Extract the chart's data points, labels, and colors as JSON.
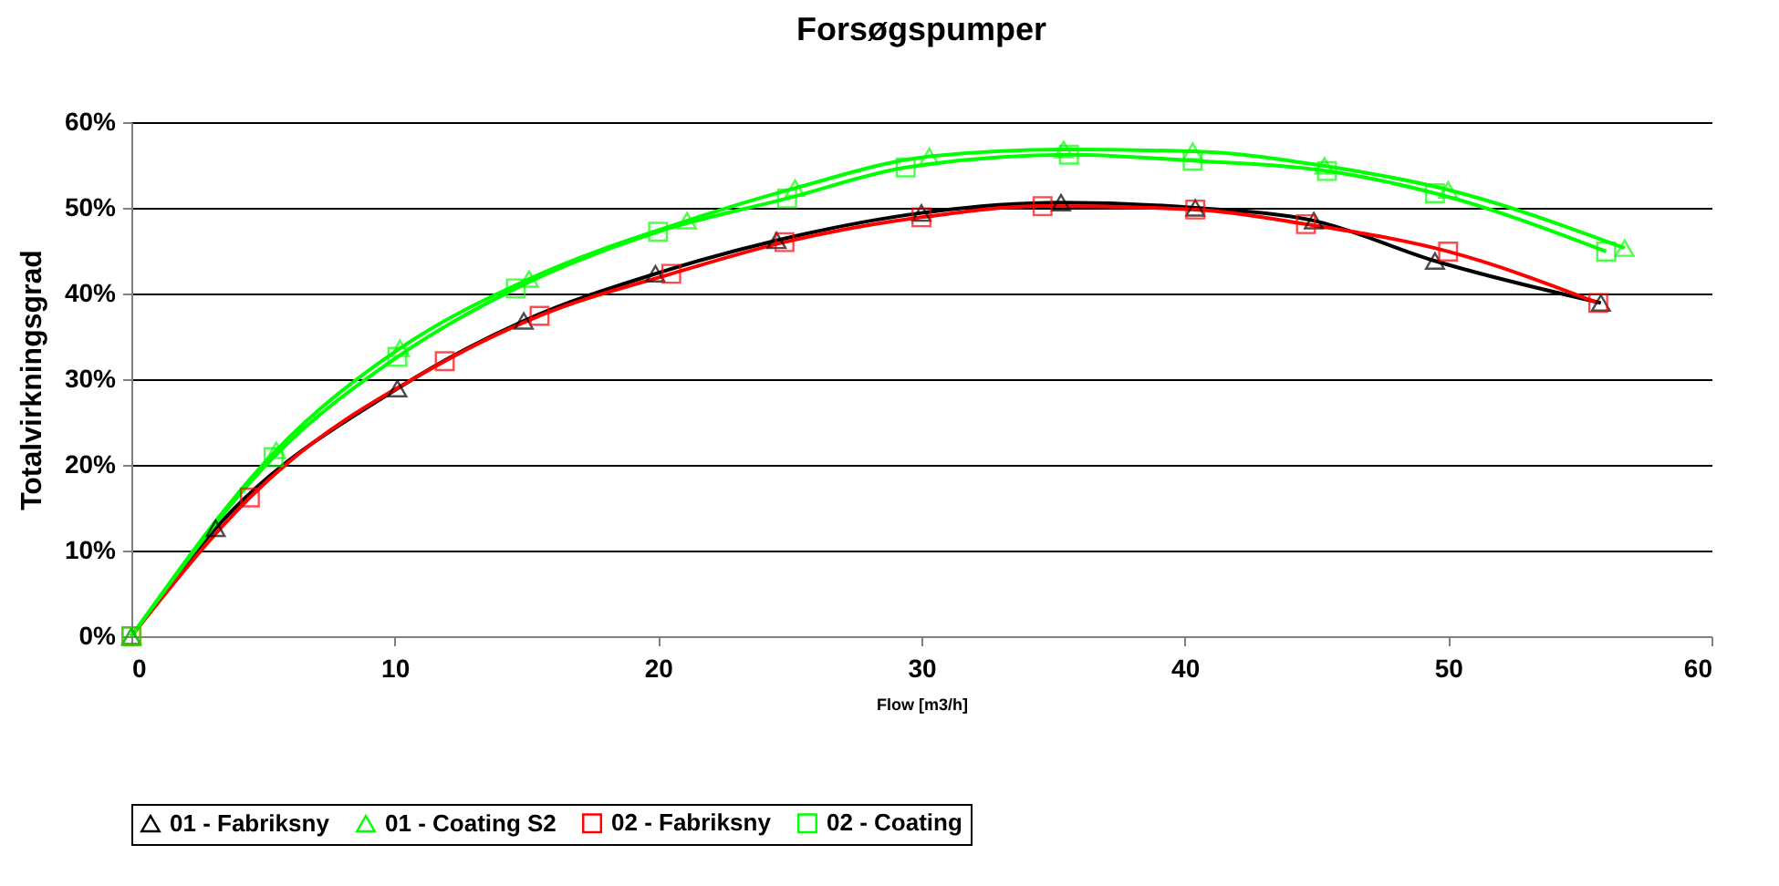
{
  "chart_data": {
    "type": "line",
    "title": "Forsøgspumper",
    "xlabel": "Flow [m3/h]",
    "ylabel": "Totalvirkningsgrad",
    "xlim": [
      0,
      60
    ],
    "xticks": [
      0,
      10,
      20,
      30,
      40,
      50,
      60
    ],
    "ylim": [
      0,
      60
    ],
    "yticks": [
      {
        "value": 0,
        "label": "0%"
      },
      {
        "value": 10,
        "label": "10%"
      },
      {
        "value": 20,
        "label": "20%"
      },
      {
        "value": 30,
        "label": "30%"
      },
      {
        "value": 40,
        "label": "40%"
      },
      {
        "value": 50,
        "label": "50%"
      },
      {
        "value": 60,
        "label": "60%"
      }
    ],
    "grid": "y",
    "legend": "bottom",
    "line_style": "solid",
    "series": [
      {
        "name": "01 - Fabriksny",
        "color": "#000000",
        "marker": "triangle",
        "x": [
          0,
          3.2,
          10.1,
          14.9,
          19.9,
          24.5,
          30.0,
          35.3,
          40.4,
          44.9,
          49.5,
          55.8
        ],
        "values": [
          0,
          12.6,
          28.9,
          36.8,
          42.3,
          46.2,
          49.4,
          50.6,
          50.0,
          48.5,
          43.8,
          38.9
        ]
      },
      {
        "name": "01 - Coating S2",
        "color": "#00ff00",
        "marker": "triangle",
        "x": [
          0,
          5.5,
          10.2,
          15.1,
          21.1,
          25.2,
          30.3,
          35.4,
          40.3,
          45.3,
          50.0,
          56.7
        ],
        "values": [
          0,
          21.7,
          33.6,
          41.7,
          48.5,
          52.3,
          56.0,
          56.8,
          56.6,
          54.9,
          52.1,
          45.3
        ]
      },
      {
        "name": "02 - Fabriksny",
        "color": "#ff0000",
        "marker": "square",
        "x": [
          0,
          4.5,
          11.9,
          15.5,
          20.5,
          24.8,
          30.0,
          34.6,
          40.4,
          44.6,
          50.0,
          55.7
        ],
        "values": [
          0,
          16.2,
          32.1,
          37.4,
          42.3,
          46.0,
          48.9,
          50.2,
          49.8,
          48.1,
          44.9,
          38.9
        ]
      },
      {
        "name": "02 - Coating",
        "color": "#00ff00",
        "marker": "square",
        "x": [
          0,
          5.4,
          10.1,
          14.6,
          20.0,
          24.9,
          29.4,
          35.6,
          40.3,
          45.4,
          49.5,
          56.0
        ],
        "values": [
          0,
          20.9,
          32.6,
          40.6,
          47.2,
          51.1,
          54.7,
          56.2,
          55.5,
          54.3,
          51.7,
          44.9
        ]
      }
    ]
  }
}
